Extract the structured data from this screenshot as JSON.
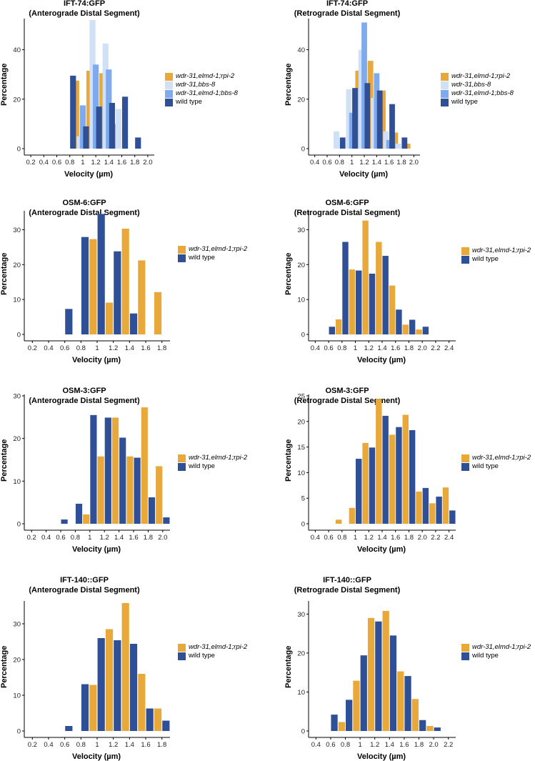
{
  "colors": {
    "wdr-31,elmd-1;rpi-2": "#E8A83A",
    "wdr-31,bbs-8": "#CFE0F7",
    "wdr-31,elmd-1;bbs-8": "#7FABEE",
    "wild type": "#2F4F96",
    "axis": "#000000"
  },
  "chart_data": [
    {
      "type": "bar",
      "title": "IFT-74:GFP",
      "subtitle": "(Anterograde Distal Segment)",
      "xlabel": "Velocity (µm)",
      "ylabel": "Percentage",
      "ylim": [
        0,
        52
      ],
      "xlim": [
        0.1,
        2.1
      ],
      "x_ticks": [
        "0.2",
        "0.4",
        "0.6",
        "0.8",
        "1",
        "1.2",
        "1.4",
        "1.6",
        "1.8",
        "2.0"
      ],
      "y_ticks": [
        "0",
        "20",
        "40"
      ],
      "legend_position": "right",
      "series": [
        {
          "name": "wdr-31,elmd-1;rpi-2",
          "x": [
            0.9,
            1.1,
            1.3,
            1.5
          ],
          "values": [
            27.5,
            31.5,
            30.5,
            10
          ]
        },
        {
          "name": "wdr-31,bbs-8",
          "x": [
            0.95,
            1.15,
            1.35,
            1.55
          ],
          "values": [
            5,
            52,
            42.5,
            16
          ]
        },
        {
          "name": "wdr-31,elmd-1;bbs-8",
          "x": [
            1.0,
            1.2,
            1.4
          ],
          "values": [
            17.5,
            34,
            32
          ]
        },
        {
          "name": "wild type",
          "x": [
            0.85,
            1.05,
            1.25,
            1.45,
            1.65,
            1.85
          ],
          "values": [
            29.5,
            9,
            17,
            18.5,
            21,
            4.5
          ]
        }
      ]
    },
    {
      "type": "bar",
      "title": "IFT-74:GFP",
      "subtitle": "(Retrograde Distal Segment)",
      "xlabel": "Velocity (µm)",
      "ylabel": "Percentage",
      "ylim": [
        0,
        52
      ],
      "xlim": [
        0.3,
        2.1
      ],
      "x_ticks": [
        "0.4",
        "0.6",
        "0.8",
        "1",
        "1.2",
        "1.4",
        "1.6",
        "1.8",
        "2.0"
      ],
      "y_ticks": [
        "0",
        "20",
        "40"
      ],
      "legend_position": "right",
      "series": [
        {
          "name": "wdr-31,elmd-1;rpi-2",
          "x": [
            1.1,
            1.3,
            1.5,
            1.7,
            1.9
          ],
          "values": [
            31.5,
            35.5,
            23.5,
            6.5,
            2
          ]
        },
        {
          "name": "wdr-31,bbs-8",
          "x": [
            0.75,
            0.95,
            1.15,
            1.35,
            1.55,
            1.75
          ],
          "values": [
            7,
            24,
            40,
            20.5,
            7,
            2
          ]
        },
        {
          "name": "wdr-31,elmd-1;bbs-8",
          "x": [
            1.0,
            1.2,
            1.4,
            1.6
          ],
          "values": [
            14.5,
            51,
            30.5,
            3.5
          ]
        },
        {
          "name": "wild type",
          "x": [
            0.85,
            1.05,
            1.25,
            1.45,
            1.65,
            1.85
          ],
          "values": [
            4.5,
            24.5,
            26.5,
            23.5,
            18,
            4.5
          ]
        }
      ]
    },
    {
      "type": "bar",
      "title": "OSM-6:GFP",
      "subtitle": "(Anterograde Distal Segment)",
      "xlabel": "Velocity (µm)",
      "ylabel": "Percentage",
      "ylim": [
        0,
        35
      ],
      "xlim": [
        0.1,
        1.9
      ],
      "x_ticks": [
        "0.2",
        "0.4",
        "0.6",
        "0.8",
        "1",
        "1.2",
        "1.4",
        "1.6",
        "1.8"
      ],
      "y_ticks": [
        "0",
        "10",
        "20",
        "30"
      ],
      "legend_position": "right",
      "series": [
        {
          "name": "wdr-31,elmd-1;rpi-2",
          "x": [
            0.95,
            1.15,
            1.35,
            1.55,
            1.75
          ],
          "values": [
            27.3,
            9.1,
            30.3,
            21.2,
            12.1
          ]
        },
        {
          "name": "wild type",
          "x": [
            0.65,
            0.85,
            1.05,
            1.25,
            1.45
          ],
          "values": [
            7.3,
            27.9,
            34.5,
            23.8,
            6
          ]
        }
      ]
    },
    {
      "type": "bar",
      "title": "OSM-6:GFP",
      "subtitle": "(Retrograde Distal Segment)",
      "xlabel": "Velocity (µm)",
      "ylabel": "Percentage",
      "ylim": [
        0,
        35
      ],
      "xlim": [
        0.3,
        2.5
      ],
      "x_ticks": [
        "0.4",
        "0.6",
        "0.8",
        "1",
        "1.2",
        "1.4",
        "1.6",
        "1.8",
        "2.0",
        "2.2",
        "2.4"
      ],
      "y_ticks": [
        "0",
        "10",
        "20",
        "30"
      ],
      "legend_position": "right",
      "series": [
        {
          "name": "wdr-31,elmd-1;rpi-2",
          "x": [
            0.75,
            0.95,
            1.15,
            1.35,
            1.55,
            1.75,
            1.95
          ],
          "values": [
            4.3,
            18.6,
            32.6,
            26.5,
            14,
            2.8,
            1.4
          ]
        },
        {
          "name": "wild type",
          "x": [
            0.65,
            0.85,
            1.05,
            1.25,
            1.45,
            1.65,
            1.85,
            2.05
          ],
          "values": [
            2.2,
            26.5,
            18.3,
            17.4,
            22.5,
            7.1,
            4.2,
            2.2
          ]
        }
      ]
    },
    {
      "type": "bar",
      "title": "OSM-3:GFP",
      "subtitle": "(Anterograde Distal Segment)",
      "xlabel": "Velocity (µm)",
      "ylabel": "Percentage",
      "ylim": [
        0,
        30
      ],
      "xlim": [
        0.1,
        2.1
      ],
      "x_ticks": [
        "0.2",
        "0.4",
        "0.6",
        "0.8",
        "1",
        "1.2",
        "1.4",
        "1.6",
        "1.8",
        "2.0"
      ],
      "y_ticks": [
        "0",
        "10",
        "20",
        "30"
      ],
      "legend_position": "right",
      "series": [
        {
          "name": "wdr-31,elmd-1;rpi-2",
          "x": [
            0.95,
            1.15,
            1.35,
            1.55,
            1.75,
            1.95
          ],
          "values": [
            2.2,
            15.8,
            24.9,
            15.8,
            27.3,
            13.5
          ]
        },
        {
          "name": "wild type",
          "x": [
            0.65,
            0.85,
            1.05,
            1.25,
            1.45,
            1.65,
            1.85,
            2.05
          ],
          "values": [
            1,
            4.7,
            25.5,
            24.9,
            20.2,
            15.5,
            6.2,
            1.5
          ]
        }
      ]
    },
    {
      "type": "bar",
      "title": "OSM-3:GFP",
      "subtitle": "(Retrograde Distal Segment)",
      "xlabel": "Velocity (µm)",
      "ylabel": "Percentage",
      "ylim": [
        0,
        25
      ],
      "xlim": [
        0.3,
        2.5
      ],
      "x_ticks": [
        "0.4",
        "0.6",
        "0.8",
        "1",
        "1.2",
        "1.4",
        "1.6",
        "1.8",
        "2.0",
        "2.2",
        "2.4"
      ],
      "y_ticks": [
        "0",
        "5",
        "10",
        "15",
        "20",
        "25"
      ],
      "legend_position": "right",
      "series": [
        {
          "name": "wdr-31,elmd-1;rpi-2",
          "x": [
            0.75,
            0.95,
            1.15,
            1.35,
            1.55,
            1.75,
            1.95,
            2.15,
            2.35
          ],
          "values": [
            0.8,
            3.1,
            15.8,
            24.4,
            17.4,
            21.3,
            6.3,
            4,
            7.1
          ]
        },
        {
          "name": "wild type",
          "x": [
            1.05,
            1.25,
            1.45,
            1.65,
            1.85,
            2.05,
            2.25,
            2.45
          ],
          "values": [
            12.7,
            14.9,
            21.1,
            18.9,
            18.3,
            7,
            5.3,
            2.6
          ]
        }
      ]
    },
    {
      "type": "bar",
      "title": "IFT-140::GFP",
      "subtitle": "(Anterograde Distal Segment)",
      "xlabel": "Velocity (µm)",
      "ylabel": "Percentage",
      "ylim": [
        0,
        36
      ],
      "xlim": [
        0.1,
        1.9
      ],
      "x_ticks": [
        "0.2",
        "0.4",
        "0.6",
        "0.8",
        "1",
        "1.2",
        "1.4",
        "1.6",
        "1.8"
      ],
      "y_ticks": [
        "0",
        "10",
        "20",
        "30"
      ],
      "legend_position": "right",
      "series": [
        {
          "name": "wdr-31,elmd-1;rpi-2",
          "x": [
            0.95,
            1.15,
            1.35,
            1.55,
            1.75
          ],
          "values": [
            12.9,
            28.5,
            35.8,
            16,
            6.3
          ]
        },
        {
          "name": "wild type",
          "x": [
            0.65,
            0.85,
            1.05,
            1.25,
            1.45,
            1.65,
            1.85
          ],
          "values": [
            1.4,
            13.1,
            26,
            25.4,
            24.4,
            6.3,
            2.9
          ]
        }
      ]
    },
    {
      "type": "bar",
      "title": "IFT-140::GFP",
      "subtitle": "(Retrograde Distal Segment)",
      "xlabel": "Velocity (µm)",
      "ylabel": "Percentage",
      "ylim": [
        0,
        33
      ],
      "xlim": [
        0.3,
        2.3
      ],
      "x_ticks": [
        "0.4",
        "0.6",
        "0.8",
        "1",
        "1.2",
        "1.4",
        "1.6",
        "1.8",
        "2.0",
        "2.2"
      ],
      "y_ticks": [
        "0",
        "10",
        "20",
        "30"
      ],
      "legend_position": "right",
      "series": [
        {
          "name": "wdr-31,elmd-1;rpi-2",
          "x": [
            0.75,
            0.95,
            1.15,
            1.35,
            1.55,
            1.75,
            1.95
          ],
          "values": [
            2.3,
            12.9,
            29,
            30.8,
            15.3,
            8.2,
            1.3
          ]
        },
        {
          "name": "wild type",
          "x": [
            0.65,
            0.85,
            1.05,
            1.25,
            1.45,
            1.65,
            1.85,
            2.05
          ],
          "values": [
            4.2,
            8,
            19.4,
            28.1,
            24.5,
            14.1,
            2.8,
            0.9
          ]
        }
      ]
    }
  ]
}
